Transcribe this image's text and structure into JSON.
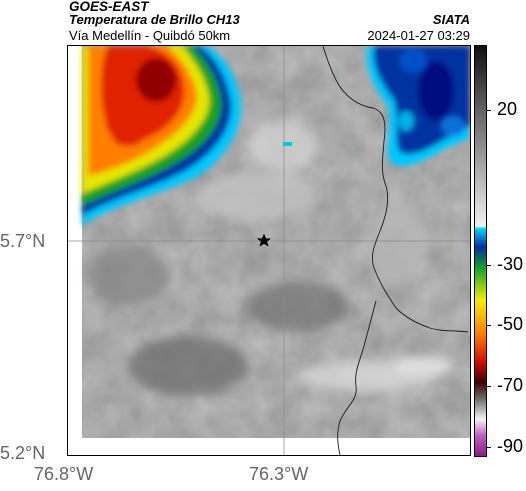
{
  "header": {
    "satellite": "GOES-EAST",
    "product": "Temperatura de Brillo CH13",
    "route": "Vía Medellín - Quibdó 50km",
    "brand": "SIATA",
    "datetime": "2024-01-27 03:29"
  },
  "axes": {
    "lat_labels": [
      "5.7°N",
      "5.2°N"
    ],
    "lon_labels": [
      "76.8°W",
      "76.3°W"
    ]
  },
  "colorbar": {
    "labels": [
      "20",
      "-30",
      "-50",
      "-70",
      "-90"
    ]
  },
  "colors": {
    "frame": "#000000",
    "gridline": "#8a8a8a",
    "border_line": "#1a1a1a",
    "axis_label": "#666666"
  },
  "map": {
    "marker": "star",
    "layers": [
      "brightness-temperature",
      "country-borders",
      "lat-lon-grid",
      "location-marker"
    ]
  }
}
